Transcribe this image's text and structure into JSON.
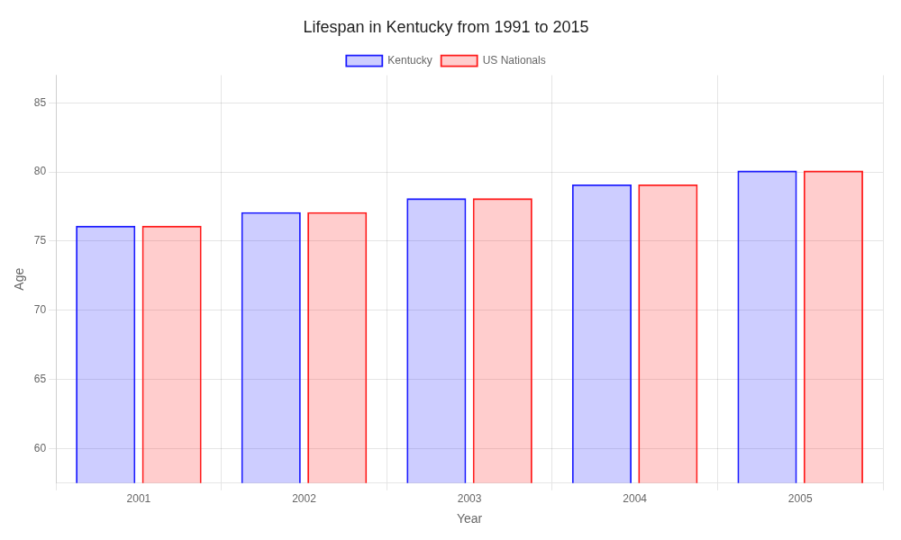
{
  "chart_data": {
    "type": "bar",
    "title": "Lifespan in Kentucky from 1991 to 2015",
    "xlabel": "Year",
    "ylabel": "Age",
    "categories": [
      "2001",
      "2002",
      "2003",
      "2004",
      "2005"
    ],
    "series": [
      {
        "name": "Kentucky",
        "color": "#1a1aff",
        "values": [
          76.1,
          77.1,
          78.1,
          79.1,
          80.1
        ]
      },
      {
        "name": "US Nationals",
        "color": "#ff1a1a",
        "values": [
          76.1,
          77.1,
          78.1,
          79.1,
          80.1
        ]
      }
    ],
    "ylim": [
      57.5,
      87
    ],
    "yticks": [
      60,
      65,
      70,
      75,
      80,
      85
    ],
    "grid": true,
    "legend": "top"
  }
}
